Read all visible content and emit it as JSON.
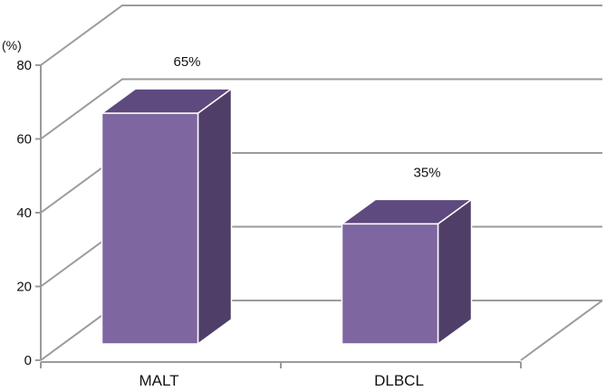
{
  "chart_data": {
    "type": "bar",
    "categories": [
      "MALT",
      "DLBCL"
    ],
    "values": [
      65,
      35
    ],
    "data_labels": [
      "65%",
      "35%"
    ],
    "y_unit": "(%)",
    "ylim": [
      0,
      80
    ],
    "yticks": [
      "0",
      "20",
      "40",
      "60",
      "80"
    ],
    "grid": true,
    "style": "3d",
    "colors": {
      "front": "#7e66a1",
      "top": "#5e4a7e",
      "side": "#4f3f68",
      "edge": "#ffffff"
    }
  }
}
